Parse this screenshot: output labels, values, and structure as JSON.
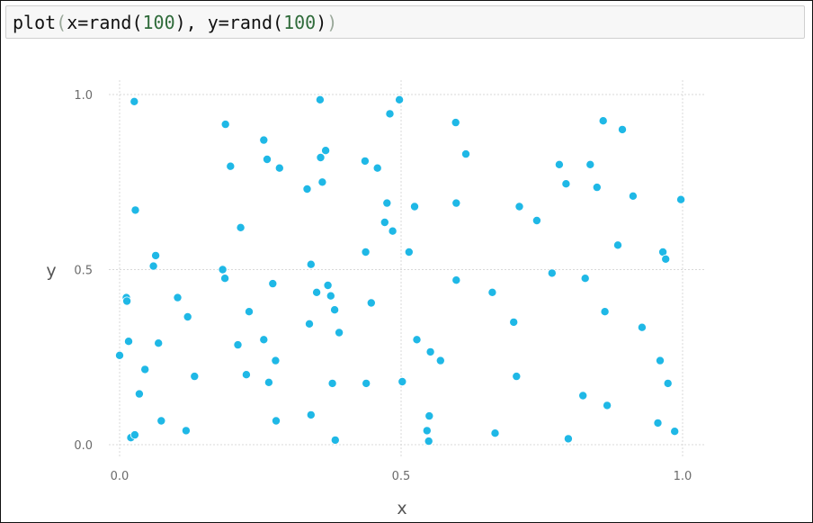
{
  "notebook": {
    "cell_input": {
      "func": "plot",
      "open_paren": "(",
      "args_a": "x=rand(",
      "n1": "100",
      "args_b": "), y=rand(",
      "n2": "100",
      "close_a": ")",
      "close_b": ")"
    }
  },
  "colors": {
    "marker": "#1fb8e6",
    "marker_edge": "#ffffff",
    "grid": "#d8d8d8",
    "tick_text": "#6b6b6b",
    "axis_label": "#555555"
  },
  "chart_data": {
    "type": "scatter",
    "title": "",
    "xlabel": "x",
    "ylabel": "y",
    "xlim": [
      0.0,
      1.0
    ],
    "ylim": [
      0.0,
      1.0
    ],
    "xticks": [
      "0.0",
      "0.5",
      "1.0"
    ],
    "yticks": [
      "0.0",
      "0.5",
      "1.0"
    ],
    "grid": true,
    "legend": "none",
    "points": [
      [
        0.0,
        0.255
      ],
      [
        0.012,
        0.42
      ],
      [
        0.013,
        0.41
      ],
      [
        0.016,
        0.295
      ],
      [
        0.02,
        0.02
      ],
      [
        0.026,
        0.98
      ],
      [
        0.027,
        0.028
      ],
      [
        0.028,
        0.67
      ],
      [
        0.035,
        0.145
      ],
      [
        0.045,
        0.215
      ],
      [
        0.06,
        0.51
      ],
      [
        0.064,
        0.54
      ],
      [
        0.069,
        0.29
      ],
      [
        0.074,
        0.068
      ],
      [
        0.103,
        0.42
      ],
      [
        0.118,
        0.04
      ],
      [
        0.121,
        0.365
      ],
      [
        0.133,
        0.195
      ],
      [
        0.183,
        0.5
      ],
      [
        0.187,
        0.475
      ],
      [
        0.188,
        0.915
      ],
      [
        0.197,
        0.795
      ],
      [
        0.21,
        0.285
      ],
      [
        0.215,
        0.62
      ],
      [
        0.225,
        0.2
      ],
      [
        0.23,
        0.38
      ],
      [
        0.256,
        0.3
      ],
      [
        0.256,
        0.87
      ],
      [
        0.262,
        0.815
      ],
      [
        0.265,
        0.178
      ],
      [
        0.272,
        0.46
      ],
      [
        0.277,
        0.24
      ],
      [
        0.278,
        0.068
      ],
      [
        0.284,
        0.79
      ],
      [
        0.333,
        0.73
      ],
      [
        0.337,
        0.345
      ],
      [
        0.34,
        0.515
      ],
      [
        0.34,
        0.085
      ],
      [
        0.35,
        0.435
      ],
      [
        0.356,
        0.985
      ],
      [
        0.357,
        0.82
      ],
      [
        0.36,
        0.75
      ],
      [
        0.366,
        0.84
      ],
      [
        0.37,
        0.455
      ],
      [
        0.375,
        0.425
      ],
      [
        0.378,
        0.175
      ],
      [
        0.382,
        0.385
      ],
      [
        0.383,
        0.013
      ],
      [
        0.39,
        0.32
      ],
      [
        0.436,
        0.81
      ],
      [
        0.437,
        0.55
      ],
      [
        0.438,
        0.175
      ],
      [
        0.447,
        0.405
      ],
      [
        0.458,
        0.79
      ],
      [
        0.471,
        0.635
      ],
      [
        0.475,
        0.69
      ],
      [
        0.48,
        0.945
      ],
      [
        0.485,
        0.61
      ],
      [
        0.497,
        0.985
      ],
      [
        0.502,
        0.18
      ],
      [
        0.514,
        0.55
      ],
      [
        0.524,
        0.68
      ],
      [
        0.528,
        0.3
      ],
      [
        0.546,
        0.04
      ],
      [
        0.549,
        0.01
      ],
      [
        0.55,
        0.082
      ],
      [
        0.552,
        0.265
      ],
      [
        0.57,
        0.24
      ],
      [
        0.597,
        0.92
      ],
      [
        0.598,
        0.69
      ],
      [
        0.598,
        0.47
      ],
      [
        0.615,
        0.83
      ],
      [
        0.662,
        0.435
      ],
      [
        0.667,
        0.033
      ],
      [
        0.7,
        0.35
      ],
      [
        0.705,
        0.195
      ],
      [
        0.71,
        0.68
      ],
      [
        0.741,
        0.64
      ],
      [
        0.768,
        0.49
      ],
      [
        0.781,
        0.8
      ],
      [
        0.793,
        0.745
      ],
      [
        0.797,
        0.017
      ],
      [
        0.823,
        0.14
      ],
      [
        0.827,
        0.475
      ],
      [
        0.836,
        0.8
      ],
      [
        0.848,
        0.735
      ],
      [
        0.859,
        0.925
      ],
      [
        0.862,
        0.38
      ],
      [
        0.866,
        0.112
      ],
      [
        0.885,
        0.57
      ],
      [
        0.893,
        0.9
      ],
      [
        0.912,
        0.71
      ],
      [
        0.928,
        0.335
      ],
      [
        0.956,
        0.062
      ],
      [
        0.96,
        0.24
      ],
      [
        0.965,
        0.55
      ],
      [
        0.97,
        0.53
      ],
      [
        0.974,
        0.175
      ],
      [
        0.986,
        0.038
      ],
      [
        0.997,
        0.7
      ]
    ]
  }
}
